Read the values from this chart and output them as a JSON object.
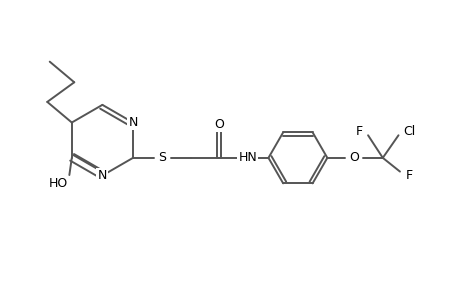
{
  "background_color": "#ffffff",
  "line_color": "#555555",
  "text_color": "#000000",
  "figsize": [
    4.6,
    3.0
  ],
  "dpi": 100,
  "xlim": [
    0,
    9.2
  ],
  "ylim": [
    0,
    6.0
  ]
}
